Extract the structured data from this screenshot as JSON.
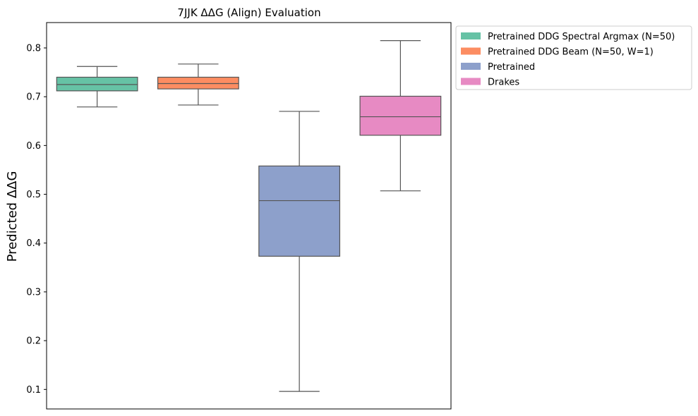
{
  "chart_data": {
    "type": "box",
    "title": "7JJK ΔΔG (Align) Evaluation",
    "xlabel": "",
    "ylabel": "Predicted ΔΔG",
    "ylim": [
      0.06,
      0.852
    ],
    "yticks": [
      0.1,
      0.2,
      0.3,
      0.4,
      0.5,
      0.6,
      0.7,
      0.8
    ],
    "ytick_labels": [
      "0.1",
      "0.2",
      "0.3",
      "0.4",
      "0.5",
      "0.6",
      "0.7",
      "0.8"
    ],
    "grid": false,
    "legend_position": "outside upper-right",
    "series": [
      {
        "name": "Pretrained DDG Spectral Argmax (N=50)",
        "color": "#66c2a5",
        "whisker_low": 0.679,
        "q1": 0.712,
        "median": 0.725,
        "q3": 0.74,
        "whisker_high": 0.762
      },
      {
        "name": "Pretrained DDG Beam (N=50, W=1)",
        "color": "#fc8d62",
        "whisker_low": 0.683,
        "q1": 0.716,
        "median": 0.727,
        "q3": 0.74,
        "whisker_high": 0.767
      },
      {
        "name": "Pretrained",
        "color": "#8da0cb",
        "whisker_low": 0.096,
        "q1": 0.373,
        "median": 0.487,
        "q3": 0.558,
        "whisker_high": 0.67
      },
      {
        "name": "Drakes",
        "color": "#e78ac3",
        "whisker_low": 0.507,
        "q1": 0.621,
        "median": 0.659,
        "q3": 0.701,
        "whisker_high": 0.815
      }
    ]
  }
}
